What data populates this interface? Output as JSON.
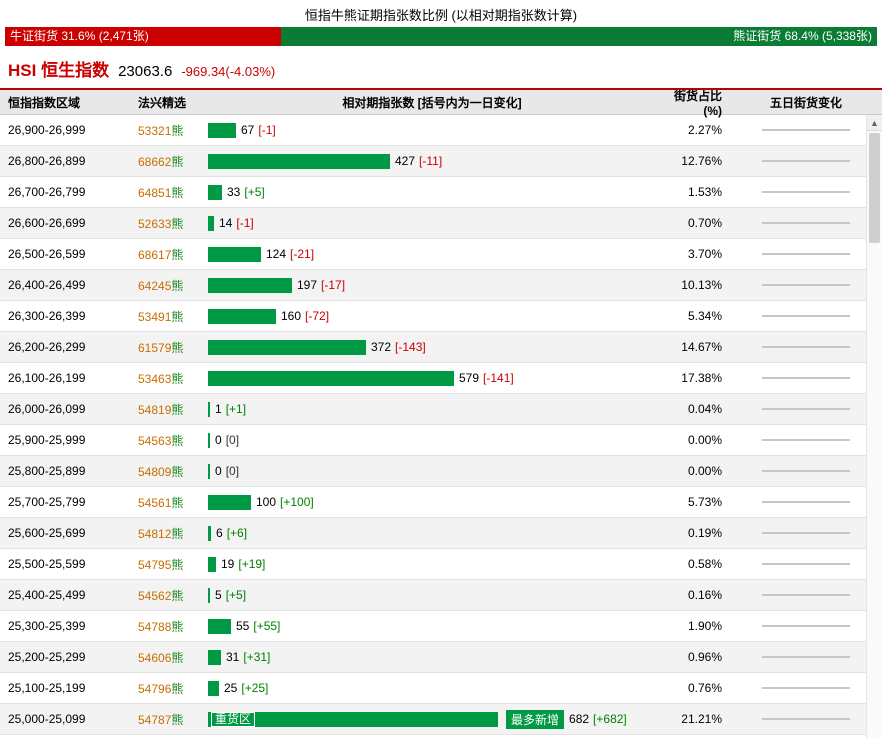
{
  "page": {
    "title": "恒指牛熊证期指张数比例 (以相对期指张数计算)"
  },
  "ratio_bar": {
    "bull": {
      "text": "牛证街货 31.6% (2,471张)",
      "value": 31.6,
      "color": "#cc0000"
    },
    "bear": {
      "text": "熊证街货 68.4% (5,338张)",
      "value": 68.4,
      "color": "#0b7c33"
    }
  },
  "index_header": {
    "symbol": "HSI",
    "name": "恒生指数",
    "price": "23063.6",
    "change": "-969.34(-4.03%)"
  },
  "icons": {
    "scroll_up": "▲"
  },
  "table": {
    "columns": [
      "恒指指数区域",
      "法兴精选",
      "相对期指张数 [括号内为一日变化]",
      "街货占比(%)",
      "五日街货变化"
    ],
    "max_value": 682,
    "heavy_label": "重货区",
    "most_new_label": "最多新增",
    "bar_color": "#009a44",
    "rows": [
      {
        "range": "26,900-26,999",
        "code": "53321",
        "suffix": "熊",
        "value": 67,
        "change": "[-1]",
        "pct": "2.27%",
        "spark": "flat"
      },
      {
        "range": "26,800-26,899",
        "code": "68662",
        "suffix": "熊",
        "value": 427,
        "change": "[-11]",
        "pct": "12.76%",
        "spark": "flat"
      },
      {
        "range": "26,700-26,799",
        "code": "64851",
        "suffix": "熊",
        "value": 33,
        "change": "[+5]",
        "pct": "1.53%",
        "spark": "flat"
      },
      {
        "range": "26,600-26,699",
        "code": "52633",
        "suffix": "熊",
        "value": 14,
        "change": "[-1]",
        "pct": "0.70%",
        "spark": "flat"
      },
      {
        "range": "26,500-26,599",
        "code": "68617",
        "suffix": "熊",
        "value": 124,
        "change": "[-21]",
        "pct": "3.70%",
        "spark": "flat"
      },
      {
        "range": "26,400-26,499",
        "code": "64245",
        "suffix": "熊",
        "value": 197,
        "change": "[-17]",
        "pct": "10.13%",
        "spark": "flat"
      },
      {
        "range": "26,300-26,399",
        "code": "53491",
        "suffix": "熊",
        "value": 160,
        "change": "[-72]",
        "pct": "5.34%",
        "spark": "flat"
      },
      {
        "range": "26,200-26,299",
        "code": "61579",
        "suffix": "熊",
        "value": 372,
        "change": "[-143]",
        "pct": "14.67%",
        "spark": "flat"
      },
      {
        "range": "26,100-26,199",
        "code": "53463",
        "suffix": "熊",
        "value": 579,
        "change": "[-141]",
        "pct": "17.38%",
        "spark": "flat"
      },
      {
        "range": "26,000-26,099",
        "code": "54819",
        "suffix": "熊",
        "value": 1,
        "change": "[+1]",
        "pct": "0.04%",
        "spark": "flat"
      },
      {
        "range": "25,900-25,999",
        "code": "54563",
        "suffix": "熊",
        "value": 0,
        "change": "[0]",
        "pct": "0.00%",
        "spark": "flat"
      },
      {
        "range": "25,800-25,899",
        "code": "54809",
        "suffix": "熊",
        "value": 0,
        "change": "[0]",
        "pct": "0.00%",
        "spark": "flat"
      },
      {
        "range": "25,700-25,799",
        "code": "54561",
        "suffix": "熊",
        "value": 100,
        "change": "[+100]",
        "pct": "5.73%",
        "spark": "flat"
      },
      {
        "range": "25,600-25,699",
        "code": "54812",
        "suffix": "熊",
        "value": 6,
        "change": "[+6]",
        "pct": "0.19%",
        "spark": "flat"
      },
      {
        "range": "25,500-25,599",
        "code": "54795",
        "suffix": "熊",
        "value": 19,
        "change": "[+19]",
        "pct": "0.58%",
        "spark": "flat"
      },
      {
        "range": "25,400-25,499",
        "code": "54562",
        "suffix": "熊",
        "value": 5,
        "change": "[+5]",
        "pct": "0.16%",
        "spark": "flat"
      },
      {
        "range": "25,300-25,399",
        "code": "54788",
        "suffix": "熊",
        "value": 55,
        "change": "[+55]",
        "pct": "1.90%",
        "spark": "flat"
      },
      {
        "range": "25,200-25,299",
        "code": "54606",
        "suffix": "熊",
        "value": 31,
        "change": "[+31]",
        "pct": "0.96%",
        "spark": "flat"
      },
      {
        "range": "25,100-25,199",
        "code": "54796",
        "suffix": "熊",
        "value": 25,
        "change": "[+25]",
        "pct": "0.76%",
        "spark": "flat"
      },
      {
        "range": "25,000-25,099",
        "code": "54787",
        "suffix": "熊",
        "value": 682,
        "change": "[+682]",
        "pct": "21.21%",
        "spark": "flat",
        "heavy": true
      }
    ]
  },
  "chart_data": [
    {
      "type": "bar",
      "title": "恒指牛熊证期指张数比例 (以相对期指张数计算)",
      "categories": [
        "牛证街货",
        "熊证街货"
      ],
      "values": [
        31.6,
        68.4
      ],
      "unit": "%",
      "counts_label": [
        "2,471张",
        "5,338张"
      ],
      "colors": [
        "#cc0000",
        "#0b7c33"
      ]
    },
    {
      "type": "bar",
      "orientation": "horizontal",
      "title": "相对期指张数 [括号内为一日变化]",
      "categories": [
        "26,900-26,999",
        "26,800-26,899",
        "26,700-26,799",
        "26,600-26,699",
        "26,500-26,599",
        "26,400-26,499",
        "26,300-26,399",
        "26,200-26,299",
        "26,100-26,199",
        "26,000-26,099",
        "25,900-25,999",
        "25,800-25,899",
        "25,700-25,799",
        "25,600-25,699",
        "25,500-25,599",
        "25,400-25,499",
        "25,300-25,399",
        "25,200-25,299",
        "25,100-25,199",
        "25,000-25,099"
      ],
      "series": [
        {
          "name": "相对期指张数",
          "values": [
            67,
            427,
            33,
            14,
            124,
            197,
            160,
            372,
            579,
            1,
            0,
            0,
            100,
            6,
            19,
            5,
            55,
            31,
            25,
            682
          ]
        },
        {
          "name": "一日变化",
          "values": [
            -1,
            -11,
            5,
            -1,
            -21,
            -17,
            -72,
            -143,
            -141,
            1,
            0,
            0,
            100,
            6,
            19,
            5,
            55,
            31,
            25,
            682
          ]
        },
        {
          "name": "街货占比(%)",
          "values": [
            2.27,
            12.76,
            1.53,
            0.7,
            3.7,
            10.13,
            5.34,
            14.67,
            17.38,
            0.04,
            0.0,
            0.0,
            5.73,
            0.19,
            0.58,
            0.16,
            1.9,
            0.96,
            0.76,
            21.21
          ]
        }
      ],
      "xlim": [
        0,
        682
      ],
      "bar_color": "#009a44",
      "annotations": [
        "重货区 → 25,000-25,099",
        "最多新增 → 25,000-25,099 682 [+682]"
      ]
    }
  ]
}
